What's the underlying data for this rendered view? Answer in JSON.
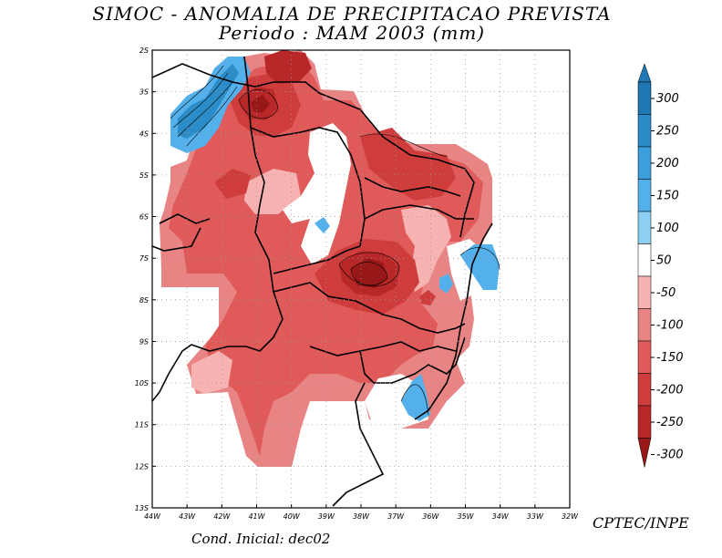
{
  "title_line1": "SIMOC -  ANOMALIA DE PRECIPITACAO PREVISTA",
  "title_line2": "Periodo : MAM 2003 (mm)",
  "institution": "CPTEC/INPE",
  "initial_condition": "Cond. Inicial: dec02",
  "map": {
    "lon_labels": [
      "44W",
      "43W",
      "42W",
      "41W",
      "40W",
      "39W",
      "38W",
      "37W",
      "36W",
      "35W",
      "34W",
      "33W",
      "32W"
    ],
    "lat_labels": [
      "2S",
      "3S",
      "4S",
      "5S",
      "6S",
      "7S",
      "8S",
      "9S",
      "10S",
      "11S",
      "12S",
      "13S"
    ],
    "extent": {
      "lon_min": -44,
      "lon_max": -32,
      "lat_min": -13,
      "lat_max": -2
    }
  },
  "colorbar": {
    "labels": [
      "300",
      "250",
      "200",
      "150",
      "100",
      "50",
      "-50",
      "-100",
      "-150",
      "-200",
      "-250",
      "-300"
    ],
    "colors": [
      "#1f78b4",
      "#2b8cc8",
      "#3a9fdc",
      "#54b0ea",
      "#8ccff3",
      "#ffffff",
      "#f7b2b2",
      "#e98484",
      "#e05a5a",
      "#cf3c3c",
      "#b92828",
      "#981818"
    ]
  },
  "colors": {
    "ocean": "#ffffff",
    "neg50": "#f7b2b2",
    "neg100": "#e98484",
    "neg150": "#e05a5a",
    "neg200": "#cf3c3c",
    "neg250": "#b92828",
    "neg300": "#981818",
    "pos50": "#8ccff3",
    "pos150": "#54b0ea",
    "pos250": "#2b8cc8"
  }
}
